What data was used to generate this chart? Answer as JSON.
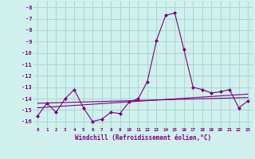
{
  "x": [
    0,
    1,
    2,
    3,
    4,
    5,
    6,
    7,
    8,
    9,
    10,
    11,
    12,
    13,
    14,
    15,
    16,
    17,
    18,
    19,
    20,
    21,
    22,
    23
  ],
  "line1": [
    -15.5,
    -14.4,
    -15.2,
    -14.0,
    -13.2,
    -14.8,
    -16.0,
    -15.8,
    -15.2,
    -15.3,
    -14.3,
    -14.0,
    -12.5,
    -8.9,
    -6.7,
    -6.5,
    -9.7,
    -13.0,
    -13.2,
    -13.5,
    -13.4,
    -13.2,
    -14.8,
    -14.2
  ],
  "line2_x": [
    0,
    23
  ],
  "line2_y": [
    -14.8,
    -13.6
  ],
  "line3_x": [
    0,
    23
  ],
  "line3_y": [
    -14.4,
    -13.9
  ],
  "color": "#800080",
  "bgcolor": "#cff0ec",
  "grid_color": "#a8d8d0",
  "xlabel": "Windchill (Refroidissement éolien,°C)",
  "xlim": [
    -0.5,
    23.5
  ],
  "ylim": [
    -16.5,
    -5.5
  ],
  "yticks": [
    -16,
    -15,
    -14,
    -13,
    -12,
    -11,
    -10,
    -9,
    -8,
    -7,
    -6
  ],
  "xticks": [
    0,
    1,
    2,
    3,
    4,
    5,
    6,
    7,
    8,
    9,
    10,
    11,
    12,
    13,
    14,
    15,
    16,
    17,
    18,
    19,
    20,
    21,
    22,
    23
  ]
}
